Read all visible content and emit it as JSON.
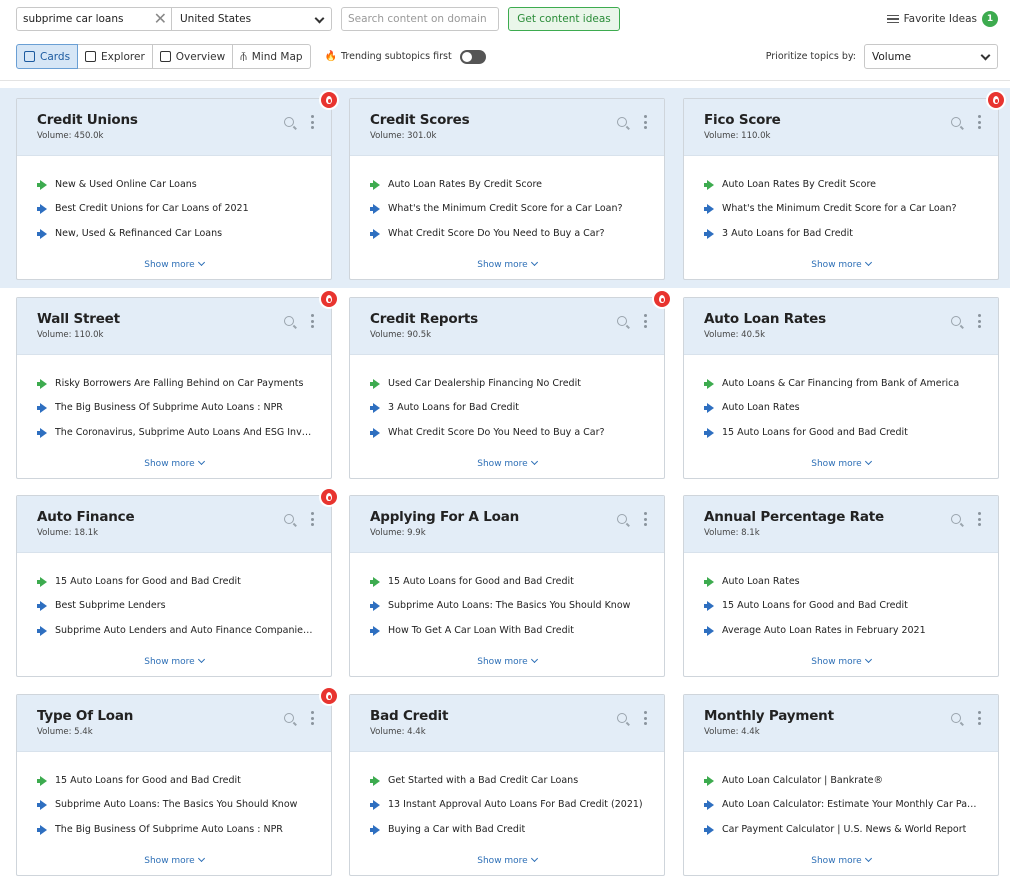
{
  "search": {
    "keyword": "subprime car loans",
    "country": "United States",
    "domain_placeholder": "Search content on domain",
    "get_ideas_label": "Get content ideas"
  },
  "favorites": {
    "label": "Favorite Ideas",
    "count": "1"
  },
  "view_tabs": [
    {
      "label": "Cards",
      "icon": "cards-icon",
      "active": true
    },
    {
      "label": "Explorer",
      "icon": "table-icon",
      "active": false
    },
    {
      "label": "Overview",
      "icon": "overview-icon",
      "active": false
    },
    {
      "label": "Mind Map",
      "icon": "mindmap-icon",
      "active": false
    }
  ],
  "trending": {
    "label": "Trending subtopics first",
    "enabled": false
  },
  "prioritize": {
    "label": "Prioritize topics by:",
    "value": "Volume"
  },
  "colors": {
    "accent": "#3dab4f",
    "link": "#2d6fb6",
    "header_bg": "#e3edf7",
    "trending": "#e8342f"
  },
  "show_more_label": "Show more",
  "cards": [
    {
      "title": "Credit Unions",
      "volume": "Volume: 450.0k",
      "trending": true,
      "ideas": [
        {
          "type": "green",
          "text": "New & Used Online Car Loans"
        },
        {
          "type": "blue",
          "text": "Best Credit Unions for Car Loans of 2021"
        },
        {
          "type": "blue",
          "text": "New, Used & Refinanced Car Loans"
        }
      ]
    },
    {
      "title": "Credit Scores",
      "volume": "Volume: 301.0k",
      "trending": false,
      "ideas": [
        {
          "type": "green",
          "text": "Auto Loan Rates By Credit Score"
        },
        {
          "type": "blue",
          "text": "What's the Minimum Credit Score for a Car Loan?"
        },
        {
          "type": "blue",
          "text": "What Credit Score Do You Need to Buy a Car?"
        }
      ]
    },
    {
      "title": "Fico Score",
      "volume": "Volume: 110.0k",
      "trending": true,
      "ideas": [
        {
          "type": "green",
          "text": "Auto Loan Rates By Credit Score"
        },
        {
          "type": "blue",
          "text": "What's the Minimum Credit Score for a Car Loan?"
        },
        {
          "type": "blue",
          "text": "3 Auto Loans for Bad Credit"
        }
      ]
    },
    {
      "title": "Wall Street",
      "volume": "Volume: 110.0k",
      "trending": true,
      "ideas": [
        {
          "type": "green",
          "text": "Risky Borrowers Are Falling Behind on Car Payments"
        },
        {
          "type": "blue",
          "text": "The Big Business Of Subprime Auto Loans : NPR"
        },
        {
          "type": "blue",
          "text": "The Coronavirus, Subprime Auto Loans And ESG Inves…"
        }
      ]
    },
    {
      "title": "Credit Reports",
      "volume": "Volume: 90.5k",
      "trending": true,
      "ideas": [
        {
          "type": "green",
          "text": "Used Car Dealership Financing No Credit"
        },
        {
          "type": "blue",
          "text": "3 Auto Loans for Bad Credit"
        },
        {
          "type": "blue",
          "text": "What Credit Score Do You Need to Buy a Car?"
        }
      ]
    },
    {
      "title": "Auto Loan Rates",
      "volume": "Volume: 40.5k",
      "trending": false,
      "ideas": [
        {
          "type": "green",
          "text": "Auto Loans & Car Financing from Bank of America"
        },
        {
          "type": "blue",
          "text": "Auto Loan Rates"
        },
        {
          "type": "blue",
          "text": "15 Auto Loans for Good and Bad Credit"
        }
      ]
    },
    {
      "title": "Auto Finance",
      "volume": "Volume: 18.1k",
      "trending": true,
      "ideas": [
        {
          "type": "green",
          "text": "15 Auto Loans for Good and Bad Credit"
        },
        {
          "type": "blue",
          "text": "Best Subprime Lenders"
        },
        {
          "type": "blue",
          "text": "Subprime Auto Lenders and Auto Finance Companies …"
        }
      ]
    },
    {
      "title": "Applying For A Loan",
      "volume": "Volume: 9.9k",
      "trending": false,
      "ideas": [
        {
          "type": "green",
          "text": "15 Auto Loans for Good and Bad Credit"
        },
        {
          "type": "blue",
          "text": "Subprime Auto Loans: The Basics You Should Know"
        },
        {
          "type": "blue",
          "text": "How To Get A Car Loan With Bad Credit"
        }
      ]
    },
    {
      "title": "Annual Percentage Rate",
      "volume": "Volume: 8.1k",
      "trending": false,
      "ideas": [
        {
          "type": "green",
          "text": "Auto Loan Rates"
        },
        {
          "type": "blue",
          "text": "15 Auto Loans for Good and Bad Credit"
        },
        {
          "type": "blue",
          "text": "Average Auto Loan Rates in February 2021"
        }
      ]
    },
    {
      "title": "Type Of Loan",
      "volume": "Volume: 5.4k",
      "trending": true,
      "ideas": [
        {
          "type": "green",
          "text": "15 Auto Loans for Good and Bad Credit"
        },
        {
          "type": "blue",
          "text": "Subprime Auto Loans: The Basics You Should Know"
        },
        {
          "type": "blue",
          "text": "The Big Business Of Subprime Auto Loans : NPR"
        }
      ]
    },
    {
      "title": "Bad Credit",
      "volume": "Volume: 4.4k",
      "trending": false,
      "ideas": [
        {
          "type": "green",
          "text": "Get Started with a Bad Credit Car Loans"
        },
        {
          "type": "blue",
          "text": "13 Instant Approval Auto Loans For Bad Credit (2021)"
        },
        {
          "type": "blue",
          "text": "Buying a Car with Bad Credit"
        }
      ]
    },
    {
      "title": "Monthly Payment",
      "volume": "Volume: 4.4k",
      "trending": false,
      "ideas": [
        {
          "type": "green",
          "text": "Auto Loan Calculator | Bankrate®"
        },
        {
          "type": "blue",
          "text": "Auto Loan Calculator: Estimate Your Monthly Car Pay…"
        },
        {
          "type": "blue",
          "text": "Car Payment Calculator | U.S. News & World Report"
        }
      ]
    }
  ]
}
